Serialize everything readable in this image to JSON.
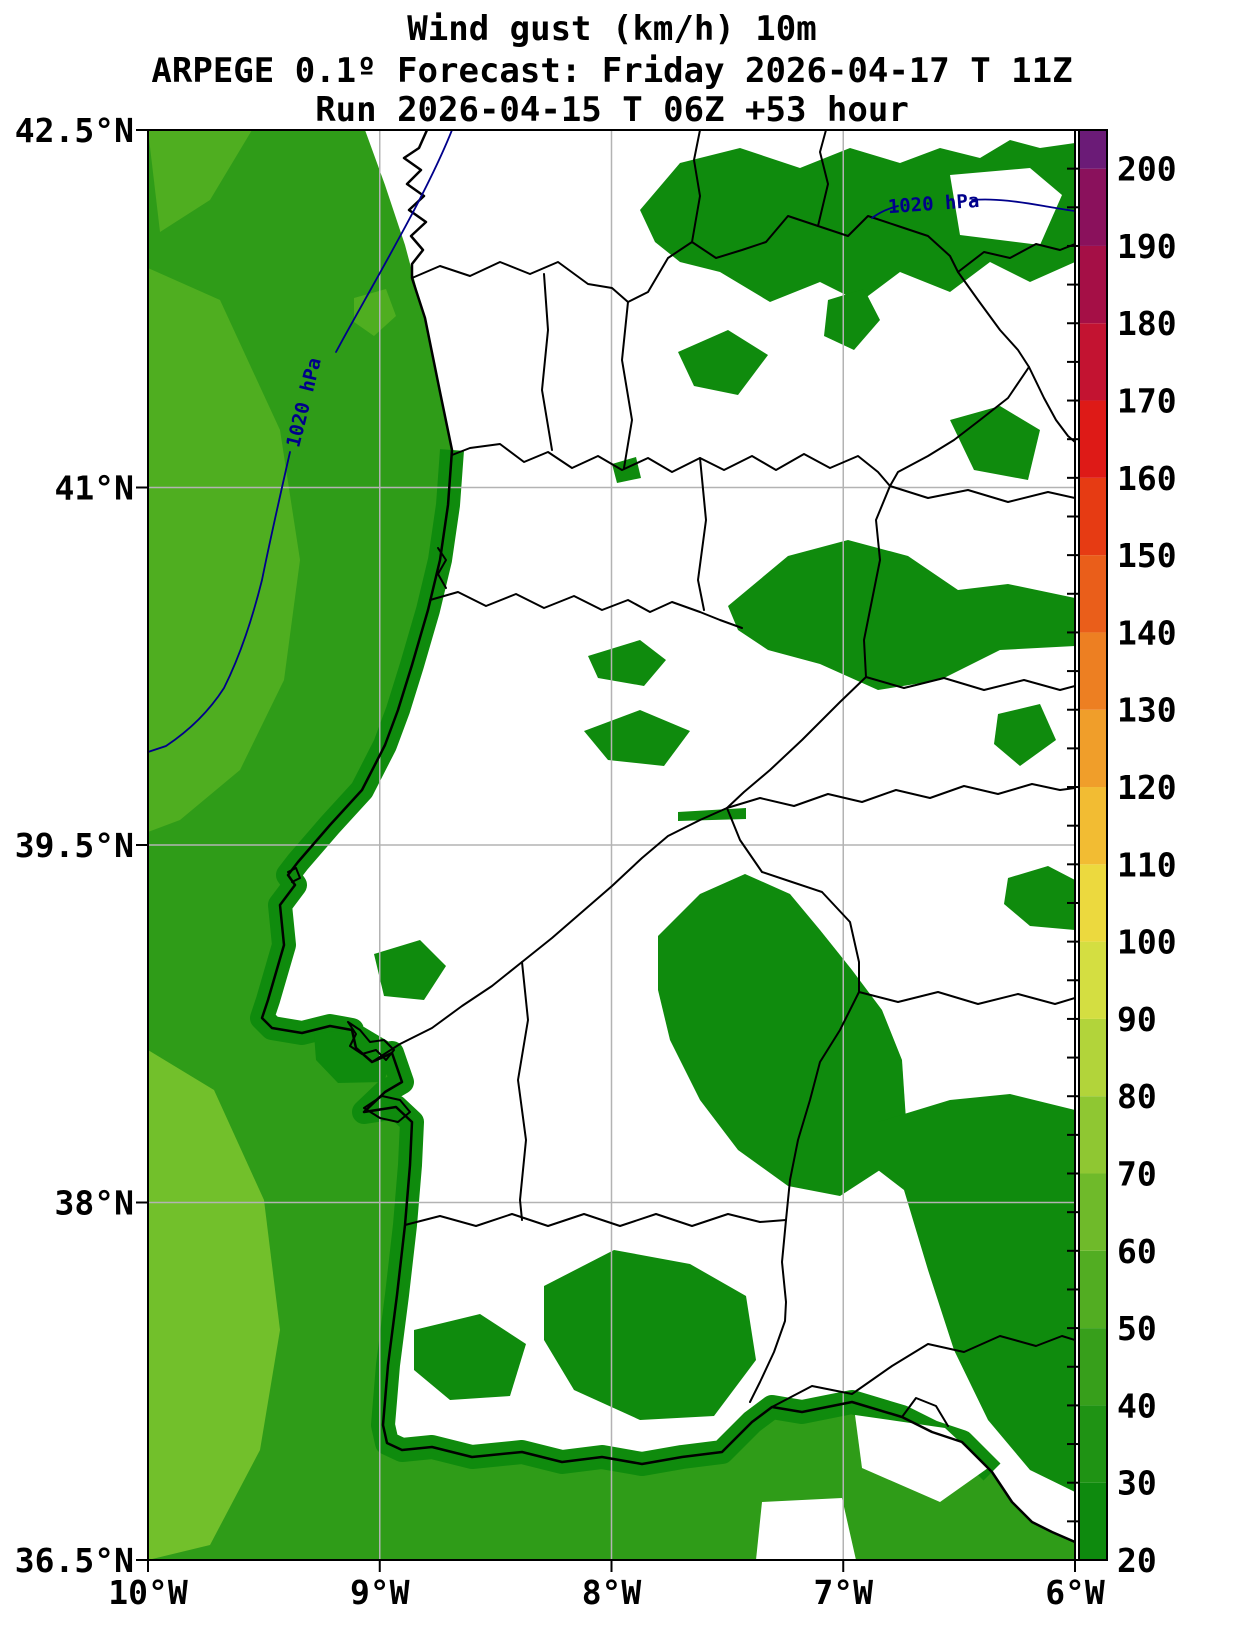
{
  "title": {
    "line1": "Wind gust (km/h) 10m",
    "line2": "ARPEGE 0.1º Forecast: Friday 2026-04-17 T 11Z",
    "line3": "Run 2026-04-15 T 06Z +53 hour"
  },
  "map": {
    "lat_ticks": [
      "42.5°N",
      "41°N",
      "39.5°N",
      "38°N",
      "36.5°N"
    ],
    "lon_ticks": [
      "10°W",
      "9°W",
      "8°W",
      "7°W",
      "6°W"
    ],
    "isobar_labels": [
      "1020 hPa",
      "1020 hPa"
    ]
  },
  "colorbar": {
    "unit_min": 20,
    "unit_max": 205,
    "tick_step": 10,
    "tick_labels": [
      "200",
      "190",
      "180",
      "170",
      "160",
      "150",
      "140",
      "130",
      "120",
      "110",
      "100",
      "90",
      "80",
      "70",
      "60",
      "50",
      "40",
      "30",
      "20"
    ],
    "segment_colors": [
      "#0e8a0e",
      "#1f9314",
      "#379f1b",
      "#52ad22",
      "#6fba2a",
      "#8fc732",
      "#b2d43a",
      "#d4de41",
      "#ecd93e",
      "#f2bc33",
      "#f09e2a",
      "#ed7f22",
      "#ea5e1a",
      "#e63b13",
      "#de1a17",
      "#c31331",
      "#a50f46",
      "#8a115c",
      "#6b1b77"
    ]
  },
  "colors": {
    "land_green": "#0f8b0d",
    "ocean_green": "#2f9c18",
    "ocean_light": "#4fae20",
    "ocean_lighter": "#72c02b",
    "grid": "#b3b3b3",
    "isobar": "#00008b",
    "frame": "#000000"
  },
  "chart_data": {
    "type": "heatmap",
    "title": "Wind gust (km/h) 10m",
    "model_line": "ARPEGE 0.1º Forecast: Friday 2026-04-17 T 11Z",
    "run_line": "Run 2026-04-15 T 06Z +53 hour",
    "variable": "wind gust at 10 m (km/h)",
    "lat_range": [
      "36.5°N",
      "42.5°N"
    ],
    "lon_range": [
      "10°W",
      "6°W"
    ],
    "colorbar_range": [
      20,
      200
    ],
    "colorbar_tick_step": 10,
    "pressure_contour": "1020 hPa",
    "legend_position": "right",
    "grid": true
  }
}
